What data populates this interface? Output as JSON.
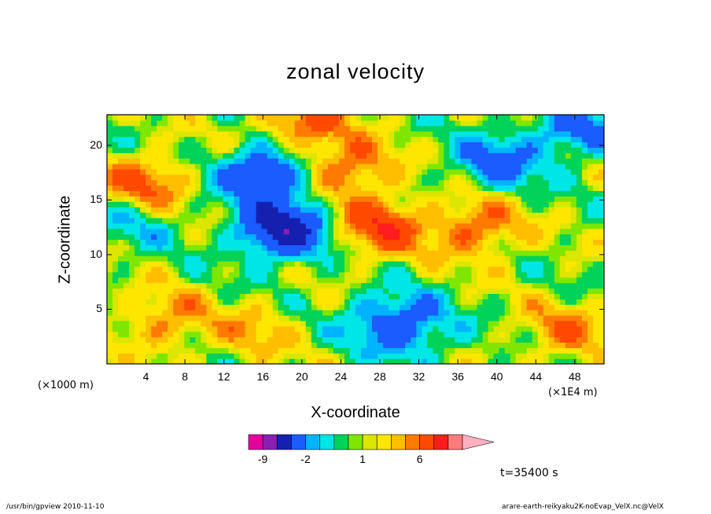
{
  "chart_data": {
    "type": "heatmap",
    "title": "zonal velocity",
    "xlabel": "X-coordinate",
    "ylabel": "Z-coordinate",
    "x_unit_note": "(×1000 m)",
    "x_scale_note": "(×1E4 m)",
    "xlim": [
      0,
      51
    ],
    "ylim": [
      0,
      22.8
    ],
    "x_ticks": [
      "4",
      "8",
      "12",
      "16",
      "20",
      "24",
      "28",
      "32",
      "36",
      "40",
      "44",
      "48"
    ],
    "x_tick_values": [
      4,
      8,
      12,
      16,
      20,
      24,
      28,
      32,
      36,
      40,
      44,
      48
    ],
    "y_ticks": [
      "5",
      "10",
      "15",
      "20"
    ],
    "y_tick_values": [
      5,
      10,
      15,
      20
    ],
    "colorbar": {
      "labels": [
        "-9",
        "-2",
        "1",
        "6"
      ],
      "label_levels": [
        -9,
        -2,
        1,
        6
      ],
      "levels": [
        -12,
        -9,
        -6,
        -3,
        -2,
        -1,
        0,
        0.5,
        1,
        2,
        3,
        4,
        6,
        9,
        12
      ],
      "colors": [
        "#e5009e",
        "#8a1fb4",
        "#1520b0",
        "#1a5cff",
        "#00b3ff",
        "#00e5e5",
        "#00d25a",
        "#7fe600",
        "#dce600",
        "#ffe600",
        "#ffbe00",
        "#ff7a00",
        "#ff4a00",
        "#ff1c1c",
        "#ff7a7a",
        "#ffb0c0"
      ]
    },
    "features": [
      {
        "kind": "negative-core",
        "x": 18,
        "z": 12.3,
        "value": -8
      },
      {
        "kind": "negative-tilt",
        "x": 16,
        "z": 17.5,
        "value": -6
      },
      {
        "kind": "positive-plume",
        "x": 28,
        "z": 12.5,
        "value": 5
      },
      {
        "kind": "positive-tilt",
        "x": 25,
        "z": 18,
        "value": 4
      },
      {
        "kind": "positive-top",
        "x": 20,
        "z": 22,
        "value": 4
      },
      {
        "kind": "positive-mid",
        "x": 38,
        "z": 12.5,
        "value": 4
      },
      {
        "kind": "negative-low",
        "x": 29,
        "z": 4,
        "value": -4
      },
      {
        "kind": "negative-low",
        "x": 32,
        "z": 3,
        "value": -2
      },
      {
        "kind": "negative-upper",
        "x": 40,
        "z": 18.5,
        "value": -4
      },
      {
        "kind": "negative-upper",
        "x": 48,
        "z": 21.5,
        "value": -4
      },
      {
        "kind": "positive-low",
        "x": 15,
        "z": 3,
        "value": 2
      },
      {
        "kind": "positive-low",
        "x": 6,
        "z": 4,
        "value": 3
      },
      {
        "kind": "positive-right-low",
        "x": 47,
        "z": 3,
        "value": 3
      },
      {
        "kind": "positive-left-upper",
        "x": 4,
        "z": 16.5,
        "value": 4
      },
      {
        "kind": "negative-left",
        "x": 3,
        "z": 13,
        "value": -2
      }
    ]
  },
  "annotations": {
    "time": "t=35400 s",
    "footer_left": "/usr/bin/gpview   2010-11-10",
    "footer_right": "arare-earth-reikyaku2K-noEvap_VelX.nc@VelX"
  }
}
